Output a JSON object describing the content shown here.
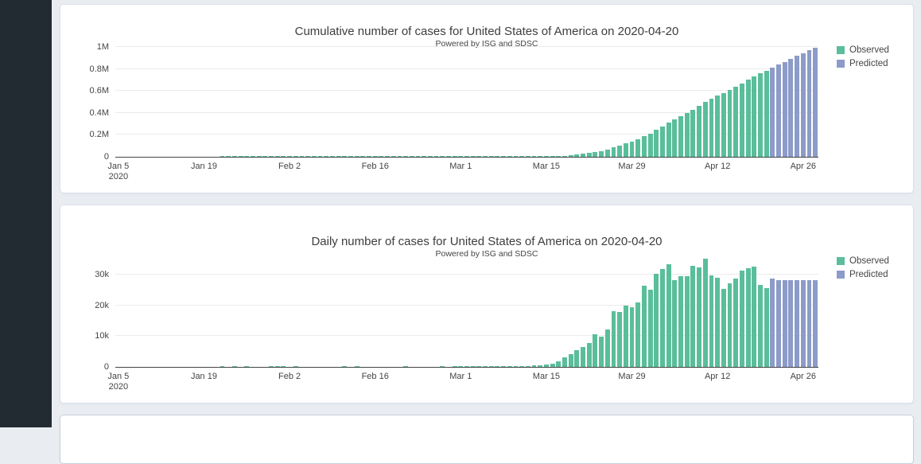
{
  "page": {
    "sidebar_color": "#222b32",
    "background_color": "#e9edf2",
    "card_background": "#ffffff"
  },
  "colors": {
    "observed": "#5abe9b",
    "predicted": "#8c9bc8",
    "axis_text": "#444444",
    "gridline": "#ebebeb"
  },
  "chart_data": [
    {
      "type": "bar",
      "title": "Cumulative number of cases for United States of America on 2020-04-20",
      "subtitle": "Powered by ISG and SDSC",
      "legend_position": "top-right",
      "grid": true,
      "x_axis": {
        "start": "2020-01-05",
        "end": "2020-04-28",
        "freq": "daily",
        "total_days": 115,
        "ticks": [
          {
            "label": "Jan 5",
            "sub": "2020",
            "day": 0
          },
          {
            "label": "Jan 19",
            "day": 14
          },
          {
            "label": "Feb 2",
            "day": 28
          },
          {
            "label": "Feb 16",
            "day": 42
          },
          {
            "label": "Mar 1",
            "day": 56
          },
          {
            "label": "Mar 15",
            "day": 70
          },
          {
            "label": "Mar 29",
            "day": 84
          },
          {
            "label": "Apr 12",
            "day": 98
          },
          {
            "label": "Apr 26",
            "day": 112
          }
        ]
      },
      "y_axis": {
        "plot_max": 1000000,
        "ticks": [
          {
            "label": "0",
            "value": 0
          },
          {
            "label": "0.2M",
            "value": 200000
          },
          {
            "label": "0.4M",
            "value": 400000
          },
          {
            "label": "0.6M",
            "value": 600000
          },
          {
            "label": "0.8M",
            "value": 800000
          },
          {
            "label": "1M",
            "value": 1000000
          }
        ]
      },
      "series": [
        {
          "name": "Observed",
          "color": "#5abe9b",
          "start_day": 0,
          "values": [
            0,
            0,
            0,
            0,
            0,
            0,
            0,
            0,
            0,
            0,
            0,
            0,
            0,
            0,
            0,
            0,
            0,
            1,
            1,
            2,
            2,
            5,
            5,
            5,
            5,
            6,
            7,
            8,
            8,
            11,
            11,
            11,
            11,
            11,
            11,
            11,
            11,
            12,
            12,
            13,
            13,
            13,
            13,
            13,
            13,
            13,
            13,
            15,
            15,
            15,
            15,
            15,
            15,
            16,
            16,
            24,
            74,
            98,
            118,
            149,
            217,
            262,
            402,
            518,
            605,
            959,
            1281,
            1663,
            2179,
            2726,
            3499,
            4632,
            6421,
            9415,
            13677,
            19100,
            25489,
            33276,
            43847,
            53740,
            65778,
            83836,
            101657,
            121478,
            140886,
            161807,
            188172,
            213372,
            243762,
            275586,
            308853,
            337072,
            366667,
            396223,
            429052,
            461437,
            496535,
            526396,
            555313,
            580619,
            607670,
            636350,
            667592,
            699706,
            732197,
            758809,
            784326
          ]
        },
        {
          "name": "Predicted",
          "color": "#8c9bc8",
          "start_day": 107,
          "values": [
            810800,
            837300,
            863800,
            890300,
            916800,
            943300,
            969800,
            996300
          ]
        }
      ]
    },
    {
      "type": "bar",
      "title": "Daily number of cases for United States of America on 2020-04-20",
      "subtitle": "Powered by ISG and SDSC",
      "legend_position": "top-right",
      "grid": true,
      "x_axis": {
        "start": "2020-01-05",
        "end": "2020-04-28",
        "freq": "daily",
        "total_days": 115,
        "ticks": [
          {
            "label": "Jan 5",
            "sub": "2020",
            "day": 0
          },
          {
            "label": "Jan 19",
            "day": 14
          },
          {
            "label": "Feb 2",
            "day": 28
          },
          {
            "label": "Feb 16",
            "day": 42
          },
          {
            "label": "Mar 1",
            "day": 56
          },
          {
            "label": "Mar 15",
            "day": 70
          },
          {
            "label": "Mar 29",
            "day": 84
          },
          {
            "label": "Apr 12",
            "day": 98
          },
          {
            "label": "Apr 26",
            "day": 112
          }
        ]
      },
      "y_axis": {
        "plot_max": 30000,
        "ticks": [
          {
            "label": "0",
            "value": 0
          },
          {
            "label": "10k",
            "value": 10000
          },
          {
            "label": "20k",
            "value": 20000
          },
          {
            "label": "30k",
            "value": 30000
          }
        ]
      },
      "series": [
        {
          "name": "Observed",
          "color": "#5abe9b",
          "start_day": 0,
          "values": [
            0,
            0,
            0,
            0,
            0,
            0,
            0,
            0,
            0,
            0,
            0,
            0,
            0,
            0,
            0,
            0,
            0,
            1,
            0,
            1,
            0,
            3,
            0,
            0,
            0,
            1,
            1,
            1,
            0,
            3,
            0,
            0,
            0,
            0,
            0,
            0,
            0,
            1,
            0,
            1,
            0,
            0,
            0,
            0,
            0,
            0,
            0,
            2,
            0,
            0,
            0,
            0,
            0,
            1,
            0,
            8,
            50,
            24,
            20,
            31,
            68,
            45,
            140,
            116,
            87,
            354,
            322,
            382,
            516,
            547,
            773,
            1133,
            1789,
            2994,
            4262,
            5423,
            6389,
            7787,
            10571,
            9893,
            12038,
            18058,
            17821,
            19821,
            19408,
            20921,
            26365,
            25200,
            30390,
            31824,
            33267,
            28219,
            29595,
            29556,
            32829,
            32385,
            35098,
            29861,
            28917,
            25306,
            27051,
            28680,
            31242,
            32114,
            32491,
            26612,
            25517
          ]
        },
        {
          "name": "Predicted",
          "color": "#8c9bc8",
          "start_day": 107,
          "values": [
            28800,
            28300,
            28300,
            28300,
            28300,
            28300,
            28300,
            28300
          ]
        }
      ]
    }
  ]
}
